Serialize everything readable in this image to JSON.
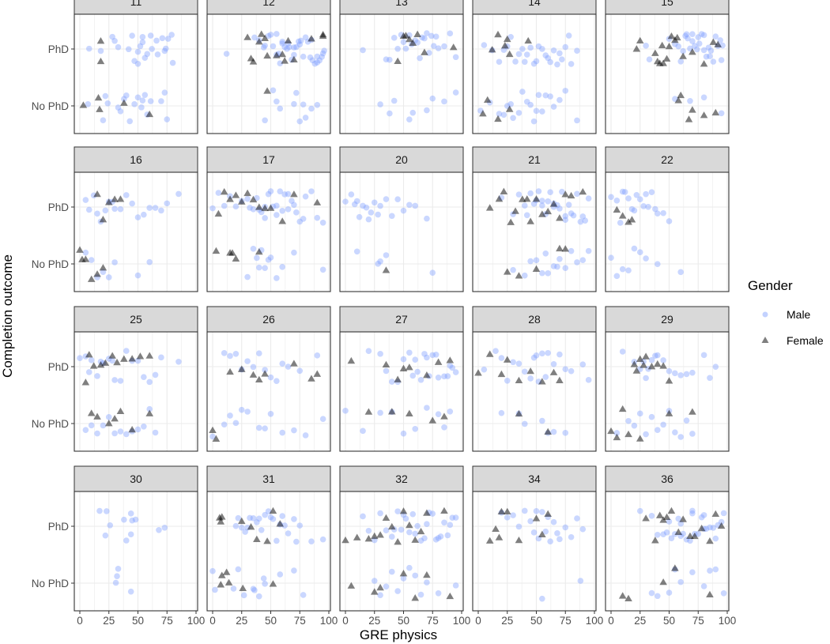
{
  "chart_data": {
    "type": "scatter",
    "title": "",
    "xlabel": "GRE physics",
    "ylabel": "Completion outcome",
    "xlim": [
      -5,
      105
    ],
    "xticks": [
      "0",
      "25",
      "50",
      "75",
      "100"
    ],
    "xtick_values": [
      0,
      25,
      50,
      75,
      100
    ],
    "ycategories": [
      "No PhD",
      "PhD"
    ],
    "grid": true,
    "facet_by": "cohort",
    "legend": {
      "title": "Gender",
      "position": "right",
      "entries": [
        "Male",
        "Female"
      ]
    },
    "colors": {
      "Male": "#7b9cff",
      "Female": "#000000",
      "strip": "#d9d9d9"
    },
    "facets": [
      {
        "label": "11",
        "male_phd": [
          8,
          18,
          28,
          30,
          33,
          42,
          45,
          47,
          50,
          52,
          54,
          56,
          58,
          61,
          62,
          66,
          67,
          71,
          73,
          74,
          76,
          79,
          80,
          50,
          54
        ],
        "female_phd": [
          18,
          18
        ],
        "male_nophd": [
          7,
          20,
          22,
          24,
          33,
          35,
          38,
          40,
          43,
          47,
          50,
          53,
          54,
          56,
          58,
          61,
          70,
          73,
          75
        ],
        "female_nophd": [
          3,
          16,
          17,
          38,
          60
        ]
      },
      {
        "label": "12",
        "male_phd": [
          12,
          36,
          40,
          44,
          48,
          50,
          52,
          55,
          57,
          58,
          60,
          62,
          64,
          66,
          68,
          70,
          72,
          74,
          76,
          78,
          80,
          82,
          84,
          86,
          88,
          90,
          92,
          94,
          95,
          96,
          55,
          65,
          75,
          85,
          45,
          70,
          90,
          60
        ],
        "female_phd": [
          30,
          33,
          35,
          40,
          42,
          45,
          47,
          55,
          60,
          62,
          65,
          70,
          85,
          95,
          95
        ],
        "male_nophd": [
          45,
          52,
          55,
          58,
          70,
          72,
          75,
          78,
          80,
          85,
          90
        ],
        "female_nophd": [
          47
        ]
      },
      {
        "label": "13",
        "male_phd": [
          15,
          35,
          38,
          42,
          45,
          48,
          50,
          52,
          55,
          57,
          60,
          62,
          64,
          66,
          68,
          70,
          72,
          74,
          76,
          78,
          80,
          85,
          90,
          95
        ],
        "female_phd": [
          45,
          50,
          52,
          55,
          58,
          62,
          68,
          93
        ],
        "male_nophd": [
          30,
          38,
          42,
          55,
          58,
          70,
          75,
          85,
          95
        ],
        "female_nophd": []
      },
      {
        "label": "14",
        "male_phd": [
          5,
          12,
          18,
          22,
          25,
          28,
          32,
          35,
          38,
          40,
          42,
          45,
          48,
          50,
          52,
          55,
          58,
          60,
          62,
          65,
          68,
          70,
          72,
          75,
          78,
          80,
          85
        ],
        "female_phd": [
          12,
          17,
          23,
          25,
          27,
          43
        ],
        "male_nophd": [
          2,
          10,
          18,
          22,
          25,
          28,
          30,
          35,
          38,
          42,
          45,
          48,
          50,
          52,
          55,
          58,
          62,
          65,
          70,
          75,
          85
        ],
        "female_nophd": [
          4,
          8,
          17,
          27
        ]
      },
      {
        "label": "15",
        "male_phd": [
          30,
          33,
          50,
          55,
          58,
          60,
          62,
          64,
          66,
          68,
          70,
          72,
          74,
          76,
          78,
          80,
          82,
          84,
          86,
          88,
          90,
          92,
          94,
          96,
          65,
          75,
          85,
          95,
          70,
          80
        ],
        "female_phd": [
          22,
          25,
          38,
          40,
          42,
          44,
          45,
          48,
          50,
          52,
          55,
          57,
          62,
          70,
          80,
          88,
          92
        ],
        "male_nophd": [
          55,
          68,
          80,
          95
        ],
        "female_nophd": [
          58,
          60,
          67,
          70,
          80,
          90
        ]
      },
      {
        "label": "16",
        "male_phd": [
          5,
          8,
          12,
          15,
          18,
          22,
          25,
          28,
          30,
          35,
          40,
          45,
          50,
          55,
          60,
          65,
          70,
          75,
          85
        ],
        "female_phd": [
          15,
          20,
          25,
          30,
          35
        ],
        "male_nophd": [
          5,
          10,
          15,
          20,
          25,
          30,
          50,
          60
        ],
        "female_nophd": [
          0,
          2,
          5,
          10,
          15,
          20
        ]
      },
      {
        "label": "17",
        "male_phd": [
          0,
          5,
          10,
          15,
          20,
          25,
          30,
          32,
          35,
          38,
          40,
          42,
          45,
          48,
          50,
          52,
          55,
          58,
          60,
          62,
          65,
          68,
          70,
          72,
          75,
          78,
          80,
          85,
          90,
          95,
          45,
          55,
          65
        ],
        "female_phd": [
          5,
          10,
          15,
          20,
          25,
          30,
          35,
          40,
          45,
          50,
          60,
          70,
          90
        ],
        "male_nophd": [
          30,
          35,
          38,
          40,
          42,
          45,
          48,
          50,
          55,
          60,
          70,
          95
        ],
        "female_nophd": [
          3,
          15,
          17,
          20,
          40
        ]
      },
      {
        "label": "20",
        "male_phd": [
          0,
          5,
          8,
          10,
          12,
          15,
          18,
          20,
          22,
          25,
          28,
          30,
          35,
          40,
          45,
          50,
          55,
          60,
          70
        ],
        "female_phd": [],
        "male_nophd": [
          10,
          28,
          30,
          35,
          75
        ],
        "female_nophd": [
          35
        ]
      },
      {
        "label": "21",
        "male_phd": [
          20,
          30,
          35,
          40,
          42,
          45,
          48,
          50,
          52,
          55,
          58,
          60,
          62,
          65,
          68,
          70,
          72,
          75,
          78,
          80,
          82,
          85,
          88,
          90,
          92,
          95,
          55,
          65,
          75
        ],
        "female_phd": [
          10,
          18,
          22,
          28,
          32,
          38,
          42,
          45,
          50,
          55,
          60,
          65,
          70,
          75,
          80,
          90
        ],
        "male_nophd": [
          30,
          40,
          45,
          50,
          55,
          58,
          60,
          65,
          68,
          70,
          75,
          80,
          85,
          90,
          95
        ],
        "female_nophd": [
          25,
          35,
          50,
          70,
          75
        ]
      },
      {
        "label": "22",
        "male_phd": [
          0,
          5,
          8,
          10,
          12,
          15,
          18,
          20,
          22,
          25,
          28,
          30,
          32,
          35,
          38,
          40,
          45,
          50
        ],
        "female_phd": [
          5,
          10,
          15,
          18
        ],
        "male_nophd": [
          0,
          5,
          10,
          15,
          20,
          25,
          30,
          40,
          60
        ],
        "female_nophd": []
      },
      {
        "label": "25",
        "male_phd": [
          0,
          5,
          8,
          10,
          15,
          18,
          20,
          25,
          28,
          30,
          35,
          40,
          45,
          50,
          55,
          60,
          65,
          70,
          85
        ],
        "female_phd": [
          5,
          8,
          12,
          18,
          22,
          28,
          32,
          38,
          45,
          52,
          60
        ],
        "male_nophd": [
          5,
          10,
          15,
          20,
          25,
          30,
          35,
          40,
          45,
          50,
          55,
          60,
          65
        ],
        "female_nophd": [
          10,
          15,
          25,
          30,
          35,
          45,
          60
        ]
      },
      {
        "label": "26",
        "male_phd": [
          10,
          15,
          20,
          25,
          30,
          35,
          40,
          45,
          50,
          55,
          60,
          65,
          75,
          90
        ],
        "female_phd": [
          15,
          25,
          35,
          40,
          45,
          70,
          85,
          90
        ],
        "male_nophd": [
          0,
          10,
          15,
          20,
          25,
          30,
          40,
          45,
          50,
          60,
          70,
          80,
          95
        ],
        "female_nophd": [
          0,
          3
        ]
      },
      {
        "label": "27",
        "male_phd": [
          20,
          30,
          35,
          40,
          45,
          50,
          55,
          58,
          60,
          62,
          65,
          68,
          70,
          72,
          75,
          78,
          80,
          85,
          88,
          90,
          92,
          95
        ],
        "female_phd": [
          5,
          35,
          45,
          50,
          55,
          70,
          80,
          90
        ],
        "male_nophd": [
          0,
          15,
          30,
          40,
          50,
          60,
          70,
          80,
          85,
          90
        ],
        "female_nophd": [
          20,
          40,
          55,
          75,
          85
        ]
      },
      {
        "label": "28",
        "male_phd": [
          5,
          15,
          20,
          25,
          30,
          35,
          40,
          45,
          48,
          50,
          52,
          55,
          58,
          60,
          65,
          70,
          75,
          80,
          90,
          95
        ],
        "female_phd": [
          0,
          10,
          20,
          25,
          35,
          45,
          55,
          65,
          70
        ],
        "male_nophd": [
          20,
          35,
          40,
          55,
          60,
          65,
          75
        ],
        "female_nophd": [
          35,
          60
        ]
      },
      {
        "label": "29",
        "male_phd": [
          10,
          20,
          25,
          28,
          30,
          32,
          35,
          38,
          40,
          45,
          50,
          55,
          60,
          65,
          70,
          80,
          85,
          90
        ],
        "female_phd": [
          20,
          22,
          25,
          28,
          30,
          35,
          40,
          45,
          50
        ],
        "male_nophd": [
          5,
          15,
          20,
          25,
          30,
          35,
          40,
          45,
          50,
          55,
          60,
          65,
          70
        ],
        "female_nophd": [
          0,
          5,
          10,
          15,
          25,
          50,
          70
        ]
      },
      {
        "label": "30",
        "male_phd": [
          17,
          22,
          23,
          26,
          38,
          40,
          44,
          44,
          45,
          48,
          68,
          73
        ],
        "male_nophd": [
          31,
          32,
          33,
          44
        ],
        "female_phd": [],
        "female_nophd": []
      },
      {
        "label": "31",
        "male_phd": [
          20,
          22,
          25,
          28,
          30,
          32,
          35,
          38,
          40,
          42,
          45,
          48,
          50,
          52,
          55,
          58,
          60,
          62,
          65,
          70,
          72,
          75,
          85,
          95
        ],
        "female_phd": [
          6,
          7,
          8,
          25,
          33,
          38,
          47,
          52,
          58
        ],
        "male_nophd": [
          0,
          2,
          18,
          22,
          27,
          35,
          36,
          40,
          44,
          45,
          58,
          70,
          78
        ],
        "female_nophd": [
          7,
          8,
          12,
          14,
          26,
          52
        ]
      },
      {
        "label": "32",
        "male_phd": [
          15,
          20,
          25,
          30,
          35,
          40,
          42,
          45,
          48,
          50,
          52,
          55,
          58,
          60,
          62,
          65,
          68,
          70,
          72,
          75,
          78,
          80,
          82,
          85,
          88,
          90,
          92,
          95
        ],
        "female_phd": [
          0,
          10,
          20,
          25,
          30,
          35,
          40,
          45,
          50,
          55,
          60,
          65,
          70,
          85
        ],
        "male_nophd": [
          25,
          30,
          35,
          40,
          45,
          50,
          55,
          60,
          65,
          70,
          80,
          95
        ],
        "female_nophd": [
          5,
          25,
          30,
          50,
          60,
          70,
          90
        ]
      },
      {
        "label": "34",
        "male_phd": [
          20,
          25,
          30,
          35,
          40,
          45,
          48,
          50,
          52,
          55,
          58,
          60,
          62,
          65,
          68,
          70,
          75,
          80,
          85,
          90
        ],
        "female_phd": [
          10,
          15,
          18,
          20,
          25,
          35,
          50,
          55,
          60
        ],
        "male_nophd": [
          55,
          88
        ],
        "female_nophd": []
      },
      {
        "label": "36",
        "male_phd": [
          25,
          35,
          40,
          45,
          48,
          50,
          52,
          55,
          58,
          60,
          62,
          65,
          68,
          70,
          72,
          75,
          78,
          80,
          82,
          85,
          88,
          90,
          92,
          95,
          97,
          60,
          70,
          80
        ],
        "female_phd": [
          30,
          38,
          42,
          45,
          48,
          52,
          58,
          62,
          68,
          72,
          78,
          85,
          90,
          95
        ],
        "male_nophd": [
          35,
          40,
          50,
          55,
          60,
          70,
          80,
          85,
          90,
          97
        ],
        "female_nophd": [
          10,
          15,
          45,
          55,
          85
        ]
      }
    ]
  }
}
